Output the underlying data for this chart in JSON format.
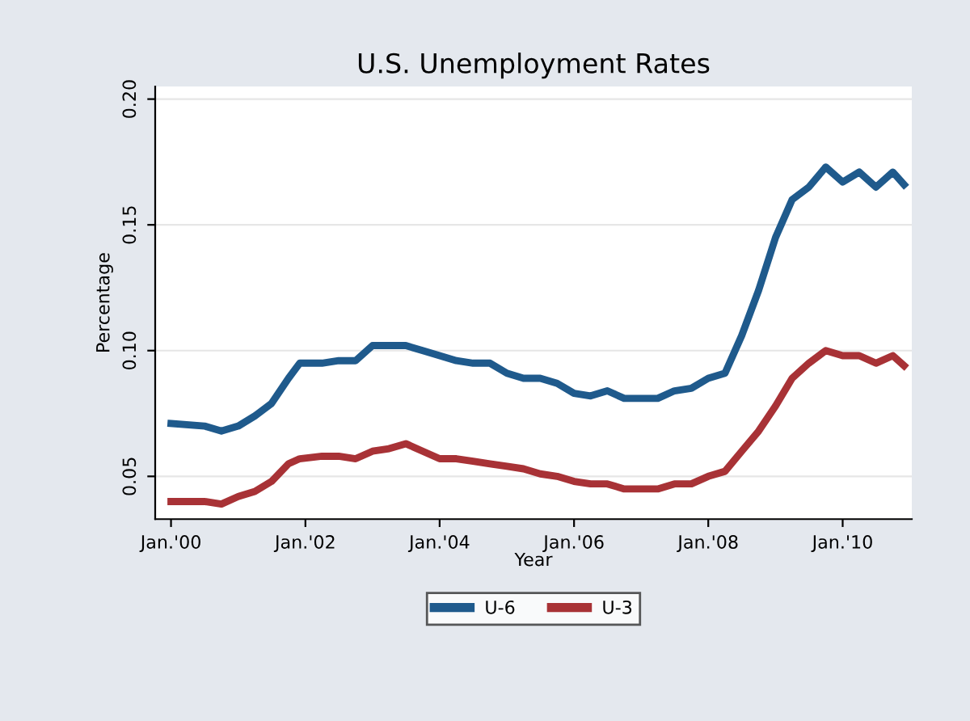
{
  "chart_data": {
    "type": "line",
    "title": "U.S. Unemployment Rates",
    "xlabel": "Year",
    "ylabel": "Percentage",
    "x": [
      "2000-01",
      "2000-07",
      "2000-10",
      "2001-01",
      "2001-04",
      "2001-07",
      "2001-10",
      "2001-12",
      "2002-04",
      "2002-07",
      "2002-10",
      "2003-01",
      "2003-04",
      "2003-07",
      "2003-10",
      "2004-01",
      "2004-04",
      "2004-07",
      "2004-10",
      "2005-01",
      "2005-04",
      "2005-07",
      "2005-10",
      "2006-01",
      "2006-04",
      "2006-07",
      "2006-10",
      "2007-01",
      "2007-04",
      "2007-07",
      "2007-10",
      "2008-01",
      "2008-04",
      "2008-07",
      "2008-10",
      "2009-01",
      "2009-04",
      "2009-07",
      "2009-10",
      "2010-01",
      "2010-04",
      "2010-07",
      "2010-10",
      "2010-12"
    ],
    "series": [
      {
        "name": "U-6",
        "color": "#1f5a8c",
        "values": [
          0.071,
          0.07,
          0.068,
          0.07,
          0.074,
          0.079,
          0.089,
          0.095,
          0.095,
          0.096,
          0.096,
          0.102,
          0.102,
          0.102,
          0.1,
          0.098,
          0.096,
          0.095,
          0.095,
          0.091,
          0.089,
          0.089,
          0.087,
          0.083,
          0.082,
          0.084,
          0.081,
          0.081,
          0.081,
          0.084,
          0.085,
          0.089,
          0.091,
          0.106,
          0.124,
          0.145,
          0.16,
          0.165,
          0.173,
          0.167,
          0.171,
          0.165,
          0.171,
          0.166
        ]
      },
      {
        "name": "U-3",
        "color": "#a83236",
        "values": [
          0.04,
          0.04,
          0.039,
          0.042,
          0.044,
          0.048,
          0.055,
          0.057,
          0.058,
          0.058,
          0.057,
          0.06,
          0.061,
          0.063,
          0.06,
          0.057,
          0.057,
          0.056,
          0.055,
          0.054,
          0.053,
          0.051,
          0.05,
          0.048,
          0.047,
          0.047,
          0.045,
          0.045,
          0.045,
          0.047,
          0.047,
          0.05,
          0.052,
          0.06,
          0.068,
          0.078,
          0.089,
          0.095,
          0.1,
          0.098,
          0.098,
          0.095,
          0.098,
          0.094
        ]
      }
    ],
    "xlim": [
      "1999-10-20",
      "2011-01-25"
    ],
    "xticks": [
      {
        "value": "2000-01",
        "label": "Jan.'00"
      },
      {
        "value": "2002-01",
        "label": "Jan.'02"
      },
      {
        "value": "2004-01",
        "label": "Jan.'04"
      },
      {
        "value": "2006-01",
        "label": "Jan.'06"
      },
      {
        "value": "2008-01",
        "label": "Jan.'08"
      },
      {
        "value": "2010-01",
        "label": "Jan.'10"
      }
    ],
    "ylim": [
      0.033,
      0.205
    ],
    "yticks": [
      {
        "value": 0.05,
        "label": "0.05"
      },
      {
        "value": 0.1,
        "label": "0.10"
      },
      {
        "value": 0.15,
        "label": "0.15"
      },
      {
        "value": 0.2,
        "label": "0.20"
      }
    ],
    "grid": "y",
    "legend": "bottom",
    "marker": "none",
    "line_style": "solid"
  }
}
